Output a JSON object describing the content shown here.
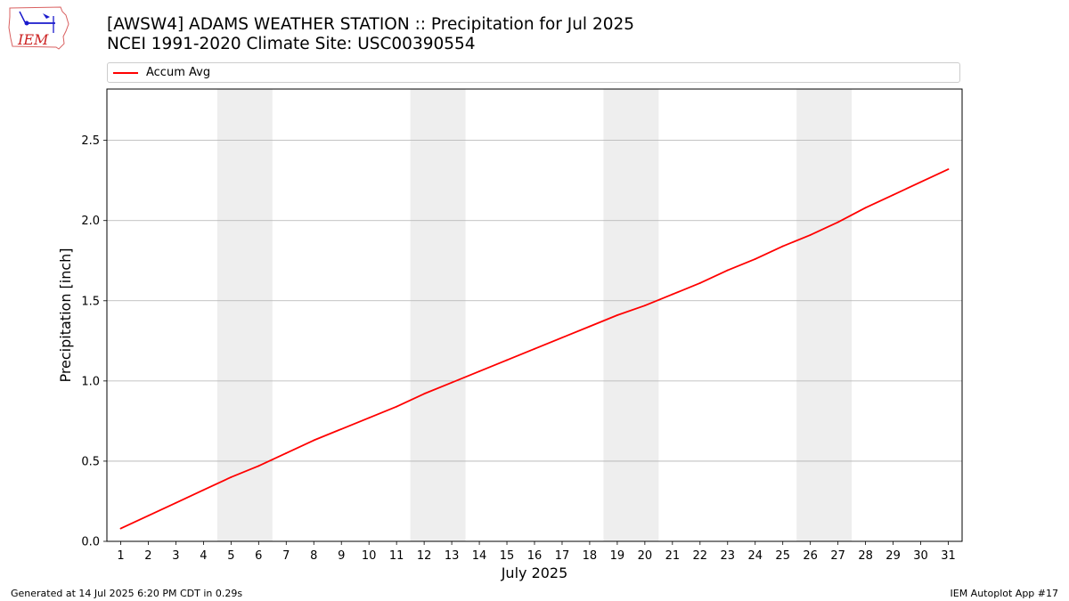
{
  "logo": {
    "text": "IEM"
  },
  "title": {
    "line1": "[AWSW4] ADAMS WEATHER STATION :: Precipitation for Jul 2025",
    "line2": "NCEI 1991-2020 Climate Site: USC00390554"
  },
  "footer": {
    "left": "Generated at 14 Jul 2025 6:20 PM CDT in 0.29s",
    "right": "IEM Autoplot App #17"
  },
  "chart_data": {
    "type": "line",
    "xlabel": "July 2025",
    "ylabel": "Precipitation [inch]",
    "x": [
      1,
      2,
      3,
      4,
      5,
      6,
      7,
      8,
      9,
      10,
      11,
      12,
      13,
      14,
      15,
      16,
      17,
      18,
      19,
      20,
      21,
      22,
      23,
      24,
      25,
      26,
      27,
      28,
      29,
      30,
      31
    ],
    "xlim": [
      0.5,
      31.5
    ],
    "ylim": [
      0,
      2.82
    ],
    "yticks": [
      0.0,
      0.5,
      1.0,
      1.5,
      2.0,
      2.5
    ],
    "ytick_labels": [
      "0.0",
      "0.5",
      "1.0",
      "1.5",
      "2.0",
      "2.5"
    ],
    "grid": "horizontal",
    "legend_position": "top",
    "weekend_bands": [
      [
        4.5,
        6.5
      ],
      [
        11.5,
        13.5
      ],
      [
        18.5,
        20.5
      ],
      [
        25.5,
        27.5
      ]
    ],
    "band_color": "#eeeeee",
    "series": [
      {
        "name": "Accum Avg",
        "color": "#ff0000",
        "values": [
          0.08,
          0.16,
          0.24,
          0.32,
          0.4,
          0.47,
          0.55,
          0.63,
          0.7,
          0.77,
          0.84,
          0.92,
          0.99,
          1.06,
          1.13,
          1.2,
          1.27,
          1.34,
          1.41,
          1.47,
          1.54,
          1.61,
          1.69,
          1.76,
          1.84,
          1.91,
          1.99,
          2.08,
          2.16,
          2.24,
          2.32
        ]
      }
    ]
  }
}
